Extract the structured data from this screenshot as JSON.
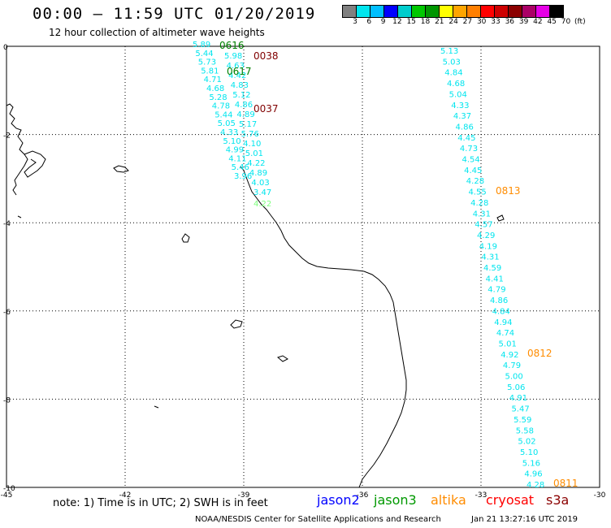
{
  "header": {
    "title": "00:00 – 11:59 UTC 01/20/2019",
    "subtitle": "12 hour collection of altimeter wave heights"
  },
  "colorbar": {
    "colors": [
      "#808080",
      "#00e5ee",
      "#00bfff",
      "#0000ff",
      "#00cdcd",
      "#00c800",
      "#009600",
      "#ffff00",
      "#ffa500",
      "#ff7f00",
      "#ff0000",
      "#cd0000",
      "#8b0000",
      "#aa0066",
      "#e600e6",
      "#000000"
    ],
    "labels": [
      "3",
      "6",
      "9",
      "12",
      "15",
      "18",
      "21",
      "24",
      "27",
      "30",
      "33",
      "36",
      "39",
      "42",
      "45",
      "70",
      "(ft)"
    ]
  },
  "map": {
    "x_ticks": [
      "-45",
      "-42",
      "-39",
      "-36",
      "-33",
      "-30"
    ],
    "y_ticks": [
      "0",
      "-2",
      "-4",
      "-6",
      "-8",
      "-10"
    ],
    "y_range": [
      -10,
      0
    ],
    "x_range": [
      -45,
      -30
    ],
    "gridlines": "dotted"
  },
  "tracks": {
    "left_cyan": [
      "5.89",
      "5.44",
      "5.73",
      "5.81",
      "4.71",
      "4.68",
      "5.28",
      "4.78",
      "5.44",
      "5.05",
      "4.33",
      "5.10",
      "4.99",
      "4.11",
      "5.46",
      "3.96"
    ],
    "middle_cyan": [
      "5.98",
      "4.63",
      "4.42",
      "4.83",
      "5.12",
      "4.86",
      "4.89",
      "5.17",
      "5.76",
      "4.10",
      "5.01",
      "4.22",
      "4.89",
      "4.03",
      "3.47"
    ],
    "middle_last": "4.22",
    "right_cyan": [
      "5.13",
      "5.03",
      "4.84",
      "4.68",
      "5.04",
      "4.33",
      "4.37",
      "4.86",
      "4.45",
      "4.73",
      "4.54",
      "4.45",
      "4.28",
      "4.55",
      "4.28",
      "4.31",
      "4.57",
      "4.29",
      "4.19",
      "4.31",
      "4.59",
      "4.41",
      "4.79",
      "4.86",
      "4.84",
      "4.94",
      "4.74",
      "5.01",
      "4.92",
      "4.79",
      "5.00",
      "5.06",
      "4.91",
      "5.47",
      "5.59",
      "5.58",
      "5.02",
      "5.10",
      "5.16",
      "4.96",
      "4.28"
    ],
    "time_labels": [
      {
        "text": "0616",
        "color": "#008000"
      },
      {
        "text": "0038",
        "color": "#800000"
      },
      {
        "text": "0617",
        "color": "#008000"
      },
      {
        "text": "0037",
        "color": "#800000"
      },
      {
        "text": "0813",
        "color": "#ff8c00"
      },
      {
        "text": "0812",
        "color": "#ff8c00"
      },
      {
        "text": "0811",
        "color": "#ff8c00"
      }
    ]
  },
  "footer": {
    "note": "note: 1) Time is in UTC; 2) SWH is in feet",
    "legend": [
      {
        "name": "jason2",
        "color": "#0000ff"
      },
      {
        "name": "jason3",
        "color": "#009900"
      },
      {
        "name": "altika",
        "color": "#ff8c00"
      },
      {
        "name": "cryosat",
        "color": "#ff0000"
      },
      {
        "name": "s3a",
        "color": "#8b0000"
      }
    ],
    "credit": "NOAA/NESDIS Center for Satellite Applications and Research",
    "timestamp": "Jan 21 13:27:16 UTC 2019"
  }
}
